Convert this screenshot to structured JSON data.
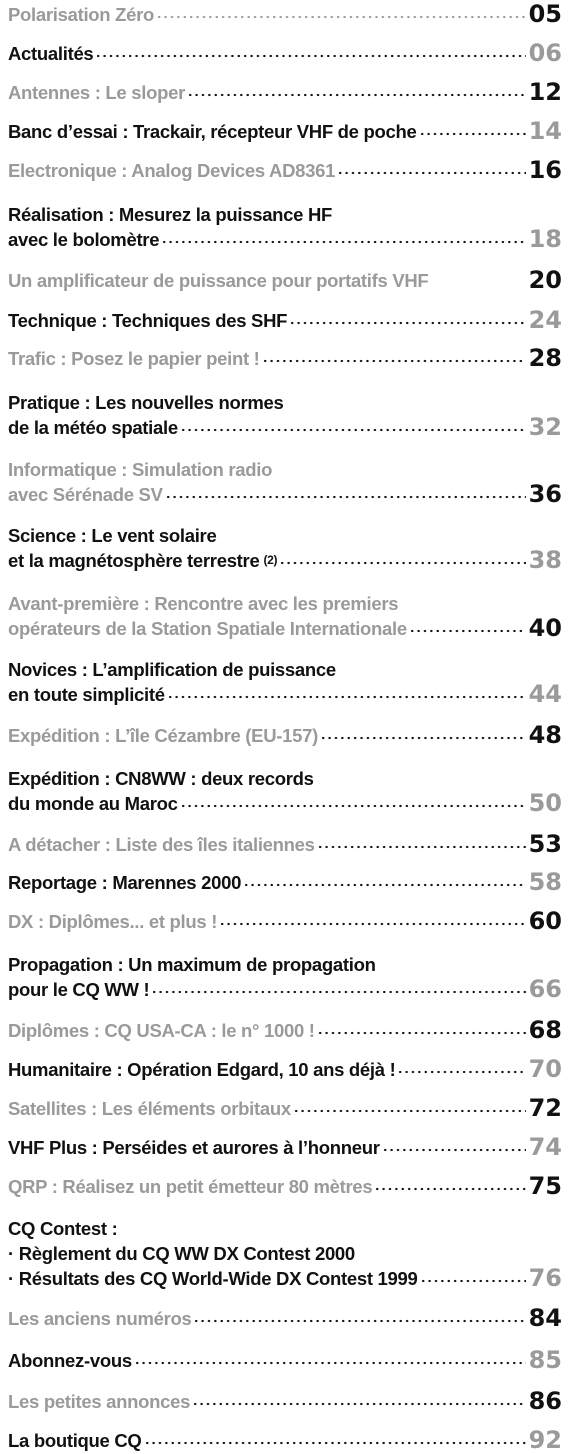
{
  "entries": [
    {
      "lines": [
        "Polarisation Zéro"
      ],
      "page": "05"
    },
    {
      "lines": [
        "Actualités"
      ],
      "page": "06"
    },
    {
      "lines": [
        "Antennes : Le sloper"
      ],
      "page": "12"
    },
    {
      "lines": [
        "Banc d’essai : Trackair, récepteur VHF de poche"
      ],
      "page": "14"
    },
    {
      "lines": [
        "Electronique : Analog Devices AD8361"
      ],
      "page": "16"
    },
    {
      "lines": [
        "Réalisation : Mesurez la puissance HF",
        "avec le bolomètre"
      ],
      "page": "18"
    },
    {
      "lines": [
        "Un amplificateur de puissance pour portatifs VHF"
      ],
      "page": "20"
    },
    {
      "lines": [
        "Technique : Techniques des SHF"
      ],
      "page": "24"
    },
    {
      "lines": [
        "Trafic : Posez le papier peint !"
      ],
      "page": "28"
    },
    {
      "lines": [
        "Pratique : Les nouvelles normes",
        "de la météo spatiale"
      ],
      "page": "32"
    },
    {
      "lines": [
        "Informatique : Simulation radio",
        "avec Sérénade SV"
      ],
      "page": "36"
    },
    {
      "lines": [
        "Science : Le vent solaire",
        "et la magnétosphère terrestre"
      ],
      "suffix": "(2)",
      "page": "38"
    },
    {
      "lines": [
        "Avant-première : Rencontre avec les premiers",
        "opérateurs de la Station Spatiale Internationale"
      ],
      "page": "40"
    },
    {
      "lines": [
        "Novices : L’amplification de puissance",
        "en toute simplicité"
      ],
      "page": "44"
    },
    {
      "lines": [
        "Expédition  : L’île Cézambre (EU-157)"
      ],
      "page": "48"
    },
    {
      "lines": [
        "Expédition : CN8WW : deux records",
        "du monde au Maroc"
      ],
      "page": "50"
    },
    {
      "lines": [
        "A détacher : Liste des îles italiennes"
      ],
      "page": "53"
    },
    {
      "lines": [
        "Reportage : Marennes 2000"
      ],
      "page": "58"
    },
    {
      "lines": [
        "DX : Diplômes... et plus !"
      ],
      "page": "60"
    },
    {
      "lines": [
        "Propagation : Un maximum de propagation",
        "pour le CQ WW !"
      ],
      "page": "66"
    },
    {
      "lines": [
        "Diplômes : CQ USA-CA : le n° 1000 !"
      ],
      "page": "68"
    },
    {
      "lines": [
        "Humanitaire : Opération Edgard, 10 ans déjà !"
      ],
      "page": "70"
    },
    {
      "lines": [
        "Satellites : Les éléments orbitaux"
      ],
      "page": "72"
    },
    {
      "lines": [
        "VHF Plus : Perséides et aurores à l’honneur"
      ],
      "page": "74"
    },
    {
      "lines": [
        "QRP : Réalisez un petit émetteur 80 mètres"
      ],
      "page": "75"
    },
    {
      "lines": [
        "CQ Contest :",
        "· Règlement du CQ WW DX Contest 2000",
        "· Résultats des CQ World-Wide DX Contest 1999"
      ],
      "page": "76"
    },
    {
      "lines": [
        "Les anciens numéros"
      ],
      "page": "84"
    },
    {
      "lines": [
        "Abonnez-vous"
      ],
      "page": "85"
    },
    {
      "lines": [
        "Les petites annonces"
      ],
      "page": "86"
    },
    {
      "lines": [
        "La boutique CQ"
      ],
      "page": "92"
    }
  ]
}
